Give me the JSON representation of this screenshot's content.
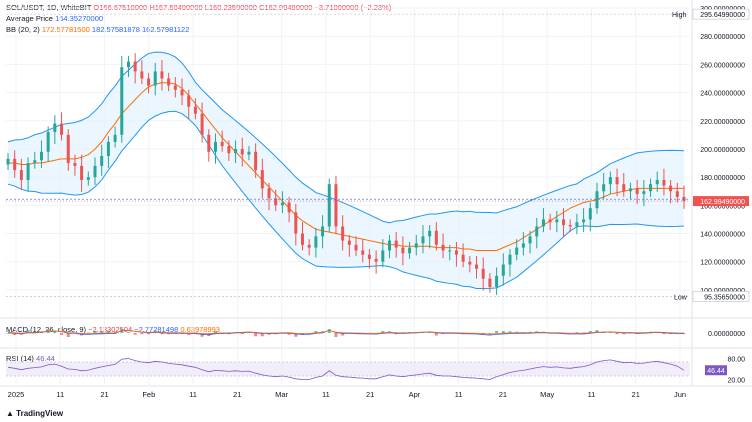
{
  "header": {
    "symbol": "SOL/USDT, 1D, WhiteBIT",
    "open": "O166.67510000",
    "high": "H167.50490000",
    "low": "L160.23590000",
    "close": "C162.99490000",
    "change": "−3.71000000 (−2.23%)",
    "avg_label": "Average Price",
    "avg_value": "164.35270000",
    "bb_label": "BB (20, 2)",
    "bb_values": [
      "172.57781500",
      "182.57581878",
      "162.57981122"
    ],
    "macd_label": "MACD (12, 26, close, 9)",
    "macd_values": [
      "−2.13302504",
      "−2.77281498",
      "0.63978993"
    ],
    "rsi_label": "RSI (14)",
    "rsi_value": "46.44"
  },
  "price_axis": {
    "ticks": [
      "300.00000000",
      "280.00000000",
      "260.00000000",
      "240.00000000",
      "220.00000000",
      "200.00000000",
      "180.00000000",
      "160.00000000",
      "140.00000000",
      "120.00000000",
      "100.00000000"
    ],
    "high_label": "High",
    "high_value": "295.64990000",
    "low_label": "Low",
    "low_value": "95.35650000",
    "last_value": "162.99490000"
  },
  "macd_axis": {
    "tick": "0.00000000"
  },
  "rsi_axis": {
    "tick_top": "80.00",
    "tick_bottom": "20.00",
    "last": "46.44"
  },
  "time_axis": [
    "2025",
    "11",
    "21",
    "Feb",
    "11",
    "21",
    "Mar",
    "11",
    "21",
    "Apr",
    "11",
    "21",
    "May",
    "11",
    "21",
    "Jun"
  ],
  "branding": {
    "logo_text": "TradingView"
  },
  "colors": {
    "up": "#26a69a",
    "down": "#ef5350",
    "bb_band": "#2196f3",
    "bb_fill": "#e3f2fd",
    "bb_basis": "#ff6d00",
    "rsi": "#7e57c2",
    "macd": "#2962ff",
    "signal": "#ff6d00"
  },
  "chart_data": {
    "type": "candlestick",
    "x_range": [
      "2025-01-01",
      "2025-06-01"
    ],
    "ylim": [
      90,
      300
    ],
    "series": [
      {
        "name": "close",
        "values": [
          193,
          185,
          178,
          190,
          192,
          198,
          212,
          218,
          210,
          190,
          188,
          178,
          180,
          188,
          195,
          205,
          210,
          258,
          262,
          255,
          250,
          245,
          255,
          250,
          245,
          242,
          238,
          230,
          225,
          210,
          198,
          205,
          202,
          197,
          200,
          196,
          198,
          185,
          172,
          165,
          160,
          162,
          155,
          140,
          132,
          130,
          138,
          145,
          175,
          145,
          135,
          132,
          128,
          125,
          122,
          120,
          128,
          135,
          130,
          126,
          130,
          133,
          138,
          142,
          132,
          128,
          128,
          125,
          120,
          118,
          115,
          108,
          102,
          110,
          118,
          125,
          130,
          133,
          138,
          145,
          150,
          148,
          150,
          146,
          145,
          148,
          150,
          158,
          170,
          175,
          180,
          175,
          170,
          172,
          168,
          170,
          175,
          178,
          174,
          170,
          166,
          163
        ]
      },
      {
        "name": "Average Price",
        "values": [
          164.35
        ]
      },
      {
        "name": "BB basis",
        "values": [
          190,
          190,
          189,
          189,
          190,
          190,
          191,
          192,
          193,
          193,
          193,
          194,
          196,
          200,
          205,
          212,
          218,
          225,
          230,
          235,
          240,
          244,
          246,
          247,
          247,
          246,
          243,
          238,
          232,
          226,
          220,
          214,
          208,
          203,
          198,
          193,
          188,
          183,
          178,
          173,
          168,
          163,
          158,
          153,
          149,
          146,
          143,
          142,
          141,
          140,
          139,
          138,
          137,
          136,
          135,
          134,
          133,
          132,
          132,
          131,
          131,
          131,
          131,
          131,
          130,
          130,
          130,
          130,
          129,
          129,
          128,
          128,
          128,
          128,
          130,
          132,
          134,
          137,
          140,
          143,
          146,
          149,
          152,
          155,
          158,
          160,
          162,
          163,
          164,
          166,
          168,
          169,
          170,
          171,
          172,
          172,
          172,
          172,
          172,
          172,
          172,
          172
        ]
      },
      {
        "name": "RSI",
        "values": [
          55,
          52,
          48,
          52,
          54,
          56,
          62,
          64,
          58,
          50,
          49,
          45,
          47,
          52,
          56,
          60,
          63,
          78,
          80,
          74,
          70,
          68,
          72,
          70,
          66,
          64,
          62,
          58,
          55,
          48,
          42,
          46,
          45,
          43,
          45,
          43,
          44,
          38,
          33,
          30,
          28,
          30,
          27,
          22,
          20,
          20,
          26,
          30,
          45,
          32,
          28,
          27,
          25,
          24,
          22,
          22,
          28,
          33,
          30,
          28,
          31,
          33,
          36,
          38,
          32,
          30,
          30,
          28,
          26,
          25,
          24,
          22,
          20,
          28,
          34,
          40,
          44,
          46,
          50,
          54,
          57,
          55,
          56,
          53,
          52,
          55,
          57,
          62,
          70,
          74,
          76,
          72,
          68,
          69,
          66,
          67,
          70,
          72,
          68,
          64,
          58,
          46.44
        ]
      }
    ]
  }
}
